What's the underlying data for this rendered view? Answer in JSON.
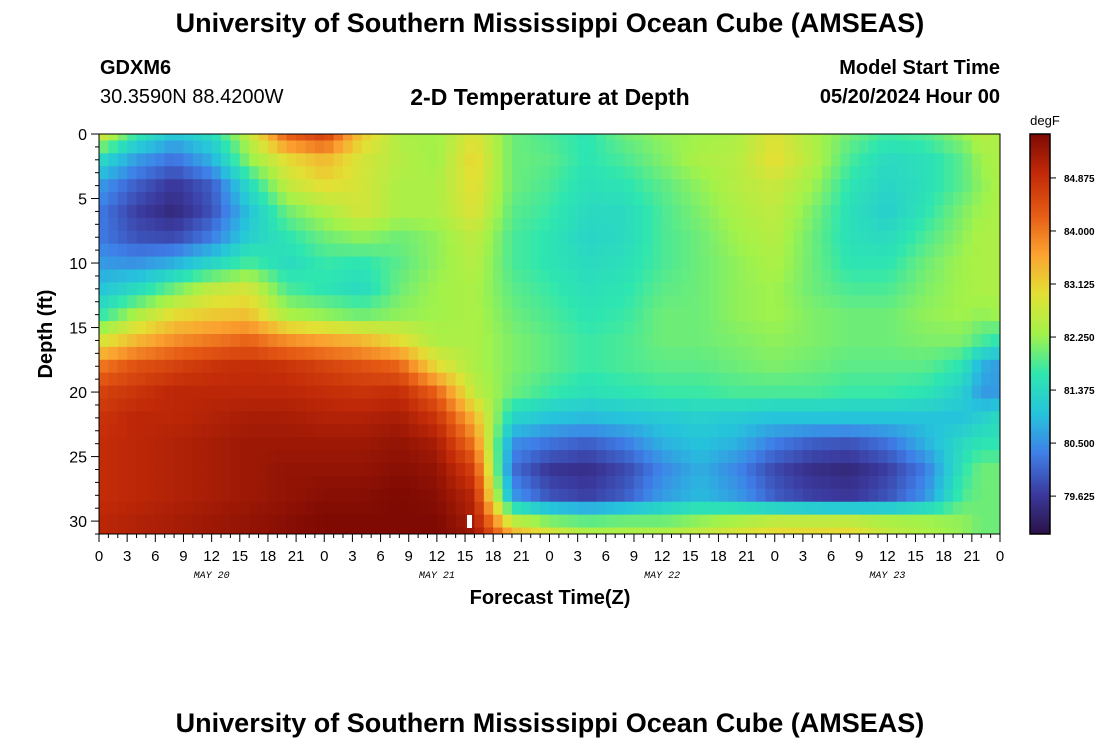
{
  "header": {
    "title": "University of Southern Mississippi Ocean Cube (AMSEAS)",
    "station": "GDXM6",
    "coords": "30.3590N  88.4200W",
    "subtitle": "2-D Temperature at Depth",
    "start_label": "Model Start Time",
    "start_value": "05/20/2024 Hour 00"
  },
  "footer": {
    "title": "University of Southern Mississippi Ocean Cube (AMSEAS)"
  },
  "chart_data": {
    "type": "heatmap",
    "title": "2-D Temperature at Depth",
    "xlabel": "Forecast Time(Z)",
    "ylabel": "Depth (ft)",
    "x_range_hours": [
      0,
      96
    ],
    "y_range_ft": [
      0,
      31
    ],
    "x_ticks": [
      "0",
      "3",
      "6",
      "9",
      "12",
      "15",
      "18",
      "21",
      "0",
      "3",
      "6",
      "9",
      "12",
      "15",
      "18",
      "21",
      "0",
      "3",
      "6",
      "9",
      "12",
      "15",
      "18",
      "21",
      "0",
      "3",
      "6",
      "9",
      "12",
      "15",
      "18",
      "21",
      "0"
    ],
    "y_ticks": [
      "0",
      "5",
      "10",
      "15",
      "20",
      "25",
      "30"
    ],
    "day_labels": [
      "MAY 20",
      "MAY 21",
      "MAY 22",
      "MAY 23"
    ],
    "colorbar": {
      "unit": "degF",
      "range": [
        79.0,
        85.6
      ],
      "ticks": [
        "84.875",
        "84.000",
        "83.125",
        "82.250",
        "81.375",
        "80.500",
        "79.625"
      ]
    },
    "colors": {
      "c0": "#2a1147",
      "c1": "#3b3a9e",
      "c2": "#3f7ee8",
      "c3": "#26c3dc",
      "c4": "#2ee6b0",
      "c5": "#a2f24a",
      "c6": "#e3e034",
      "c7": "#fba230",
      "c8": "#e55a14",
      "c9": "#c22a08",
      "c10": "#7e0a03"
    },
    "values_note": "Temperatures (degF) sampled at depth rows x time columns",
    "depth_ft": [
      0,
      2,
      4,
      6,
      8,
      10,
      12,
      14,
      16,
      18,
      20,
      22,
      24,
      26,
      28,
      30,
      31
    ],
    "time_h": [
      0,
      4,
      8,
      12,
      16,
      20,
      24,
      28,
      32,
      36,
      40,
      44,
      48,
      52,
      56,
      60,
      64,
      68,
      72,
      76,
      80,
      84,
      88,
      92,
      94,
      96
    ],
    "values": [
      [
        82.8,
        81.6,
        81.0,
        81.4,
        82.6,
        84.2,
        84.6,
        83.2,
        82.4,
        82.3,
        82.9,
        82.0,
        81.8,
        81.6,
        82.0,
        82.2,
        82.3,
        82.4,
        82.9,
        82.4,
        82.0,
        81.7,
        81.8,
        82.2,
        82.5,
        82.4
      ],
      [
        81.4,
        80.6,
        80.2,
        80.8,
        82.2,
        83.0,
        83.4,
        82.8,
        82.5,
        82.3,
        83.1,
        82.0,
        81.9,
        81.6,
        81.8,
        82.1,
        82.4,
        82.5,
        83.0,
        82.5,
        81.8,
        81.4,
        81.5,
        81.9,
        82.3,
        82.4
      ],
      [
        80.6,
        80.0,
        79.6,
        80.0,
        81.4,
        82.6,
        83.0,
        82.8,
        82.4,
        82.4,
        83.0,
        82.0,
        81.8,
        81.5,
        81.6,
        81.9,
        82.2,
        82.5,
        82.7,
        82.3,
        81.6,
        81.3,
        81.5,
        81.9,
        82.2,
        82.4
      ],
      [
        80.3,
        79.7,
        79.4,
        79.9,
        81.0,
        82.0,
        82.4,
        82.8,
        82.4,
        82.4,
        82.9,
        81.9,
        81.7,
        81.4,
        81.4,
        81.8,
        82.1,
        82.4,
        82.6,
        82.1,
        81.5,
        81.2,
        81.6,
        82.1,
        82.3,
        82.4
      ],
      [
        80.3,
        79.9,
        79.8,
        80.3,
        81.2,
        81.6,
        82.0,
        82.2,
        82.0,
        82.2,
        82.6,
        81.8,
        81.6,
        81.3,
        81.4,
        81.8,
        82.0,
        82.3,
        82.5,
        82.0,
        81.5,
        81.4,
        81.8,
        82.2,
        82.4,
        82.4
      ],
      [
        80.6,
        80.5,
        80.8,
        81.3,
        81.8,
        81.4,
        81.7,
        81.6,
        81.9,
        82.2,
        82.5,
        81.8,
        81.6,
        81.4,
        81.5,
        81.8,
        82.0,
        82.2,
        82.4,
        82.0,
        81.6,
        81.6,
        82.0,
        82.3,
        82.4,
        82.4
      ],
      [
        81.0,
        81.4,
        82.0,
        82.6,
        82.8,
        81.8,
        81.6,
        81.4,
        82.0,
        82.3,
        82.4,
        81.9,
        81.7,
        81.5,
        81.6,
        81.9,
        82.0,
        82.2,
        82.3,
        82.0,
        81.8,
        81.8,
        82.1,
        82.3,
        82.4,
        82.4
      ],
      [
        81.6,
        82.4,
        83.0,
        83.2,
        83.3,
        82.4,
        82.2,
        82.0,
        82.2,
        82.3,
        82.4,
        82.0,
        81.8,
        81.6,
        81.7,
        82.0,
        82.0,
        82.2,
        82.3,
        82.1,
        82.0,
        82.0,
        82.2,
        82.3,
        82.2,
        82.3
      ],
      [
        82.8,
        83.4,
        83.8,
        84.0,
        84.2,
        83.8,
        83.6,
        83.4,
        83.0,
        82.4,
        82.4,
        82.1,
        81.9,
        81.7,
        81.8,
        82.0,
        82.0,
        82.1,
        82.2,
        82.1,
        82.0,
        82.0,
        82.1,
        82.1,
        81.8,
        81.6
      ],
      [
        84.0,
        84.4,
        84.6,
        84.8,
        84.9,
        84.8,
        84.6,
        84.4,
        84.2,
        83.0,
        82.4,
        82.1,
        81.9,
        81.7,
        81.8,
        81.9,
        81.9,
        82.0,
        82.1,
        82.0,
        81.9,
        81.9,
        81.9,
        81.6,
        80.8,
        80.6
      ],
      [
        84.6,
        84.8,
        85.0,
        85.0,
        85.0,
        85.0,
        84.9,
        84.8,
        84.9,
        84.2,
        82.6,
        82.0,
        81.7,
        81.5,
        81.6,
        81.7,
        81.7,
        81.8,
        81.8,
        81.8,
        81.7,
        81.7,
        81.6,
        81.2,
        80.6,
        80.6
      ],
      [
        84.8,
        85.0,
        85.0,
        85.1,
        85.2,
        85.2,
        85.1,
        85.1,
        85.2,
        84.8,
        83.4,
        81.3,
        81.0,
        80.9,
        81.0,
        81.1,
        81.2,
        81.1,
        81.0,
        81.0,
        81.0,
        81.0,
        81.0,
        81.0,
        81.2,
        81.4
      ],
      [
        84.9,
        85.0,
        85.1,
        85.2,
        85.3,
        85.3,
        85.3,
        85.3,
        85.4,
        85.2,
        84.0,
        80.5,
        80.2,
        80.0,
        80.3,
        80.8,
        81.0,
        80.8,
        80.3,
        80.0,
        79.9,
        80.2,
        80.8,
        81.4,
        81.6,
        81.6
      ],
      [
        84.9,
        85.0,
        85.1,
        85.2,
        85.3,
        85.4,
        85.4,
        85.4,
        85.5,
        85.4,
        84.6,
        80.2,
        79.6,
        79.5,
        79.8,
        80.4,
        80.8,
        80.4,
        79.8,
        79.5,
        79.4,
        79.7,
        80.3,
        81.6,
        82.0,
        82.0
      ],
      [
        84.9,
        85.0,
        85.1,
        85.2,
        85.3,
        85.4,
        85.5,
        85.5,
        85.6,
        85.5,
        85.0,
        80.6,
        79.9,
        79.7,
        80.0,
        80.6,
        80.9,
        80.6,
        80.0,
        79.7,
        79.6,
        79.9,
        80.5,
        81.8,
        82.0,
        82.0
      ],
      [
        85.0,
        85.1,
        85.2,
        85.3,
        85.4,
        85.5,
        85.6,
        85.6,
        85.6,
        85.6,
        85.2,
        82.6,
        82.1,
        81.9,
        82.0,
        82.0,
        82.2,
        82.4,
        82.6,
        82.6,
        82.6,
        82.4,
        82.3,
        82.2,
        82.0,
        82.0
      ],
      [
        85.0,
        85.1,
        85.2,
        85.3,
        85.4,
        85.5,
        85.6,
        85.6,
        85.6,
        85.6,
        85.3,
        83.4,
        82.8,
        82.4,
        82.4,
        82.4,
        82.6,
        82.8,
        83.0,
        83.0,
        83.0,
        82.6,
        82.4,
        82.2,
        82.0,
        82.0
      ]
    ]
  }
}
